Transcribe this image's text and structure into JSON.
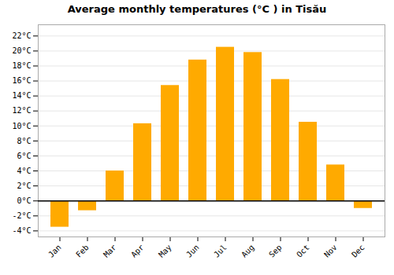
{
  "chart_data": {
    "type": "bar",
    "title": "Average monthly temperatures (°C ) in Tisău",
    "categories": [
      "Jan",
      "Feb",
      "Mar",
      "Apr",
      "May",
      "Jun",
      "Jul",
      "Aug",
      "Sep",
      "Oct",
      "Nov",
      "Dec"
    ],
    "values": [
      -3.5,
      -1.3,
      4.0,
      10.3,
      15.4,
      18.8,
      20.5,
      19.8,
      16.2,
      10.5,
      4.8,
      -1.0
    ],
    "color": "#FFAA00",
    "ylim": [
      -4.8,
      23.5
    ],
    "yticks": [
      {
        "value": -4,
        "label": "-4°C"
      },
      {
        "value": -2,
        "label": "-2°C"
      },
      {
        "value": 0,
        "label": "0°C"
      },
      {
        "value": 2,
        "label": "2°C"
      },
      {
        "value": 4,
        "label": "4°C"
      },
      {
        "value": 6,
        "label": "6°C"
      },
      {
        "value": 8,
        "label": "8°C"
      },
      {
        "value": 10,
        "label": "10°C"
      },
      {
        "value": 12,
        "label": "12°C"
      },
      {
        "value": 14,
        "label": "14°C"
      },
      {
        "value": 16,
        "label": "16°C"
      },
      {
        "value": 18,
        "label": "18°C"
      },
      {
        "value": 20,
        "label": "20°C"
      },
      {
        "value": 22,
        "label": "22°C"
      }
    ],
    "grid": true
  }
}
